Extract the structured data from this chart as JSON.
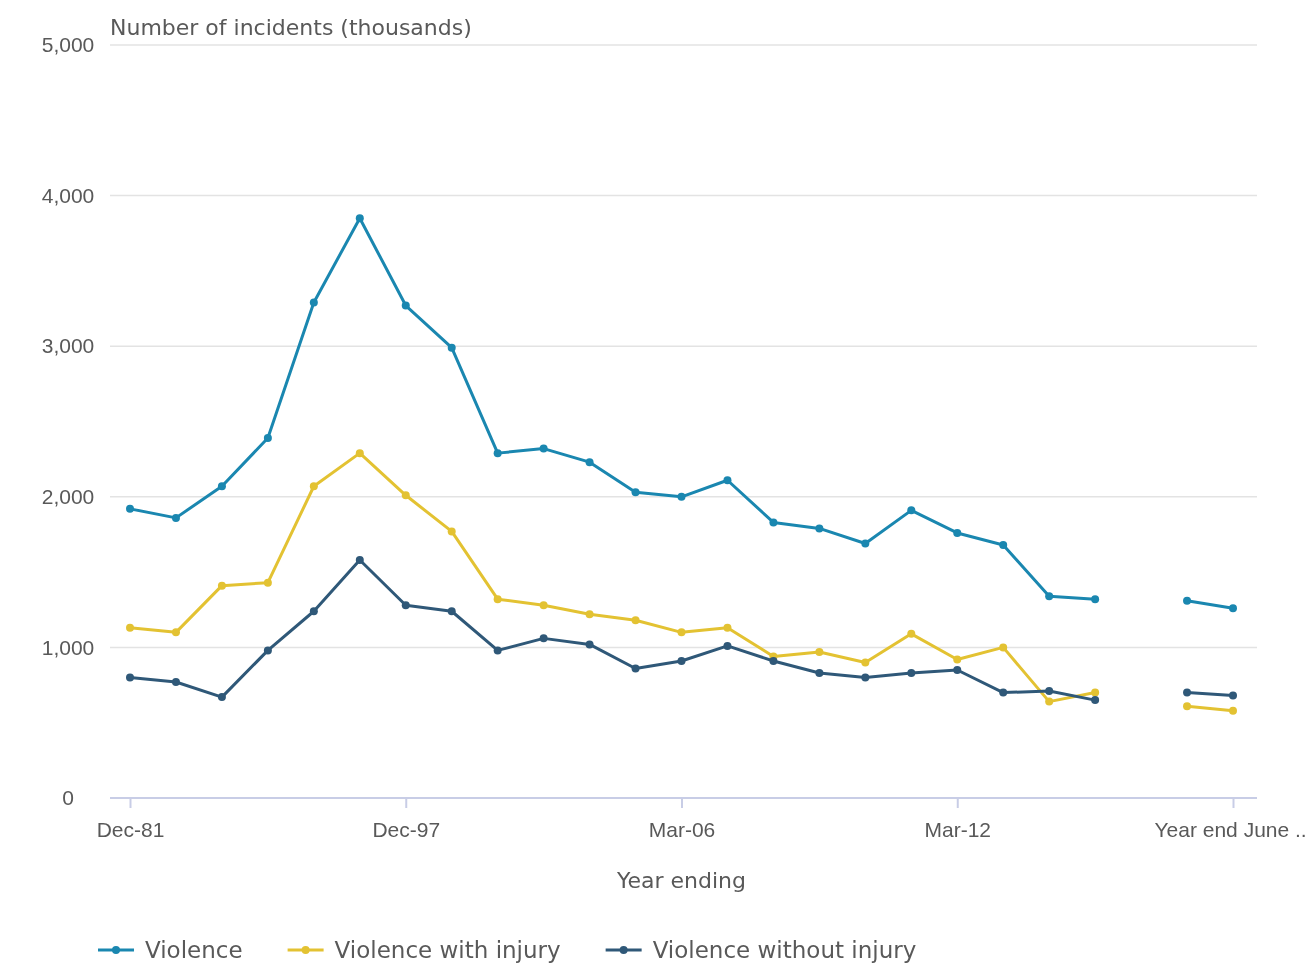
{
  "chart_data": {
    "type": "line",
    "ylabel": "Number of incidents (thousands)",
    "xlabel": "Year ending",
    "categories": [
      "Dec-81",
      null,
      null,
      null,
      null,
      null,
      "Dec-97",
      null,
      null,
      null,
      null,
      null,
      "Mar-06",
      null,
      null,
      null,
      null,
      null,
      "Mar-12",
      null,
      null,
      null,
      null,
      null,
      "Year end June ..."
    ],
    "series": [
      {
        "name": "Violence",
        "color": "#1a87b0",
        "values": [
          1920,
          1860,
          2070,
          2390,
          3290,
          3850,
          3270,
          2990,
          2290,
          2320,
          2230,
          2030,
          2000,
          2110,
          1830,
          1790,
          1690,
          1910,
          1760,
          1680,
          1340,
          1320,
          null,
          1310,
          1260
        ]
      },
      {
        "name": "Violence with injury",
        "color": "#e3c232",
        "values": [
          1130,
          1100,
          1410,
          1430,
          2070,
          2290,
          2010,
          1770,
          1320,
          1280,
          1220,
          1180,
          1100,
          1130,
          940,
          970,
          900,
          1090,
          920,
          1000,
          640,
          700,
          null,
          610,
          580
        ]
      },
      {
        "name": "Violence without injury",
        "color": "#2f5878",
        "values": [
          800,
          770,
          670,
          980,
          1240,
          1580,
          1280,
          1240,
          980,
          1060,
          1020,
          860,
          910,
          1010,
          910,
          830,
          800,
          830,
          850,
          700,
          710,
          650,
          null,
          700,
          680
        ]
      }
    ],
    "ylim": [
      0,
      5000
    ],
    "yticks": [
      {
        "value": 0,
        "label": "0"
      },
      {
        "value": 1000,
        "label": "1,000"
      },
      {
        "value": 2000,
        "label": "2,000"
      },
      {
        "value": 3000,
        "label": "3,000"
      },
      {
        "value": 4000,
        "label": "4,000"
      },
      {
        "value": 5000,
        "label": "5,000"
      }
    ],
    "grid": "y",
    "legend": "bottom",
    "marker": "circle",
    "line_style": "solid"
  }
}
